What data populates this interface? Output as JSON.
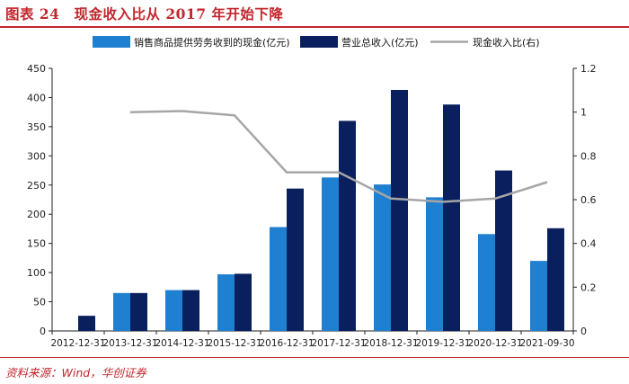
{
  "header": {
    "title": "图表 24　现金收入比从 2017 年开始下降"
  },
  "footer": {
    "source": "资料来源：Wind，华创证券"
  },
  "colors": {
    "cash_bar": "#1f7fd0",
    "revenue_bar": "#0a1f5e",
    "ratio_line": "#a6a6a6",
    "accent": "#c1272d"
  },
  "chart_data": {
    "type": "bar",
    "categories": [
      "2012-12-31",
      "2013-12-31",
      "2014-12-31",
      "2015-12-31",
      "2016-12-31",
      "2017-12-31",
      "2018-12-31",
      "2019-12-31",
      "2020-12-31",
      "2021-09-30"
    ],
    "series": [
      {
        "name": "销售商品提供劳务收到的现金(亿元)",
        "kind": "bar",
        "axis": "left",
        "values": [
          null,
          65,
          70,
          97,
          178,
          263,
          251,
          229,
          166,
          120
        ]
      },
      {
        "name": "营业总收入(亿元)",
        "kind": "bar",
        "axis": "left",
        "values": [
          26,
          65,
          70,
          98,
          244,
          360,
          413,
          388,
          275,
          176
        ]
      },
      {
        "name": "现金收入比(右)",
        "kind": "line",
        "axis": "right",
        "values": [
          null,
          1.0,
          1.005,
          0.985,
          0.725,
          0.725,
          0.605,
          0.59,
          0.605,
          0.68
        ]
      }
    ],
    "y_left": {
      "min": 0,
      "max": 450,
      "ticks": [
        "0",
        "50",
        "100",
        "150",
        "200",
        "250",
        "300",
        "350",
        "400",
        "450"
      ]
    },
    "y_right": {
      "min": 0,
      "max": 1.2,
      "ticks": [
        "0",
        "0.2",
        "0.4",
        "0.6",
        "0.8",
        "1",
        "1.2"
      ]
    },
    "legend_position": "top",
    "grid": false
  }
}
